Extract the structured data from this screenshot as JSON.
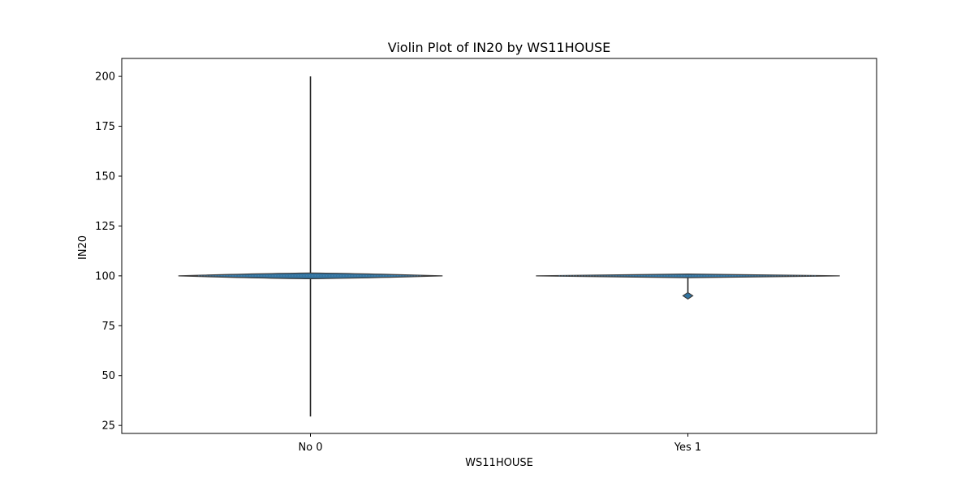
{
  "chart_data": {
    "type": "violin",
    "title": "Violin Plot of IN20 by WS11HOUSE",
    "xlabel": "WS11HOUSE",
    "ylabel": "IN20",
    "categories": [
      "No 0",
      "Yes 1"
    ],
    "ylim": [
      21,
      209
    ],
    "yticks": [
      25,
      50,
      75,
      100,
      125,
      150,
      175,
      200
    ],
    "grid": false,
    "legend": "none",
    "fill_color": "#3274a1",
    "edge_color": "#3d3d3d",
    "violins": [
      {
        "category": "No 0",
        "min": 29.5,
        "max": 200,
        "median": 100,
        "q1": 99,
        "q3": 101,
        "outlier_bump": null,
        "relative_width": 1.0
      },
      {
        "category": "Yes 1",
        "min": 89.8,
        "max": 101,
        "median": 100,
        "q1": 99.5,
        "q3": 100.5,
        "outlier_bump": 90,
        "relative_width": 1.15
      }
    ]
  }
}
